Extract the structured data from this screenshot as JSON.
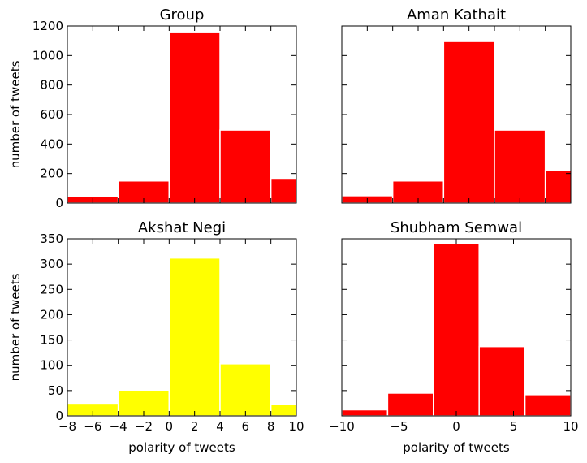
{
  "chart_data": [
    {
      "type": "bar",
      "title": "Group",
      "ylabel": "number of tweets",
      "xlabel": "",
      "color": "#ff0000",
      "bins": [
        [
          -8,
          -4
        ],
        [
          -4,
          0
        ],
        [
          0,
          4
        ],
        [
          4,
          8
        ],
        [
          8,
          12
        ]
      ],
      "values": [
        45,
        150,
        1155,
        495,
        168
      ],
      "xlim": [
        -8,
        10
      ],
      "ylim": [
        0,
        1200
      ],
      "yticks": [
        0,
        200,
        400,
        600,
        800,
        1000,
        1200
      ],
      "xticks": [
        -8,
        -6,
        -4,
        -2,
        0,
        2,
        4,
        6,
        8,
        10
      ],
      "show_ytick_labels": true,
      "show_xtick_labels": false,
      "grid": false
    },
    {
      "type": "bar",
      "title": "Aman Kathait",
      "ylabel": "",
      "xlabel": "",
      "color": "#ff0000",
      "bins": [
        [
          -8,
          -4
        ],
        [
          -4,
          0
        ],
        [
          0,
          4
        ],
        [
          4,
          8
        ],
        [
          8,
          12
        ]
      ],
      "values": [
        50,
        150,
        1095,
        495,
        220
      ],
      "xlim": [
        -8,
        10
      ],
      "ylim": [
        0,
        1200
      ],
      "yticks": [
        0,
        200,
        400,
        600,
        800,
        1000,
        1200
      ],
      "xticks": [
        -8,
        -6,
        -4,
        -2,
        0,
        2,
        4,
        6,
        8,
        10
      ],
      "show_ytick_labels": false,
      "show_xtick_labels": false,
      "grid": false
    },
    {
      "type": "bar",
      "title": "Akshat Negi",
      "ylabel": "number of tweets",
      "xlabel": "polarity of tweets",
      "color": "#ffff00",
      "bins": [
        [
          -8,
          -4
        ],
        [
          -4,
          0
        ],
        [
          0,
          4
        ],
        [
          4,
          8
        ],
        [
          8,
          12
        ]
      ],
      "values": [
        25,
        51,
        312,
        103,
        23
      ],
      "xlim": [
        -8,
        10
      ],
      "ylim": [
        0,
        350
      ],
      "yticks": [
        0,
        50,
        100,
        150,
        200,
        250,
        300,
        350
      ],
      "xticks": [
        -8,
        -6,
        -4,
        -2,
        0,
        2,
        4,
        6,
        8,
        10
      ],
      "show_ytick_labels": true,
      "show_xtick_labels": true,
      "grid": false
    },
    {
      "type": "bar",
      "title": "Shubham Semwal",
      "ylabel": "",
      "xlabel": "polarity of tweets",
      "color": "#ff0000",
      "bins": [
        [
          -10,
          -6
        ],
        [
          -6,
          -2
        ],
        [
          -2,
          2
        ],
        [
          2,
          6
        ],
        [
          6,
          10
        ]
      ],
      "values": [
        12,
        45,
        340,
        137,
        42
      ],
      "xlim": [
        -10,
        10
      ],
      "ylim": [
        0,
        350
      ],
      "yticks": [
        0,
        50,
        100,
        150,
        200,
        250,
        300,
        350
      ],
      "xticks": [
        -10,
        -5,
        0,
        5,
        10
      ],
      "show_ytick_labels": false,
      "show_xtick_labels": true,
      "grid": false
    }
  ]
}
